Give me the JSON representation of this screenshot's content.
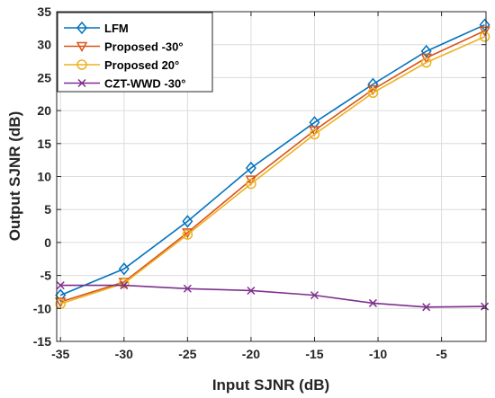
{
  "chart_data": {
    "type": "line",
    "xlabel": "Input SJNR (dB)",
    "ylabel": "Output SJNR (dB)",
    "xlim": [
      -35.3,
      -1.5
    ],
    "ylim": [
      -15,
      35
    ],
    "xticks": [
      -35,
      -30,
      -25,
      -20,
      -15,
      -10,
      -5
    ],
    "yticks": [
      -15,
      -10,
      -5,
      0,
      5,
      10,
      15,
      20,
      25,
      30,
      35
    ],
    "grid": true,
    "legend_position": "top-left",
    "series": [
      {
        "name": "LFM",
        "color": "#0072BD",
        "marker": "diamond",
        "x": [
          -35,
          -30,
          -25,
          -20,
          -15,
          -10.4,
          -6.2,
          -1.6
        ],
        "y": [
          -8.0,
          -4.0,
          3.2,
          11.3,
          18.2,
          24.0,
          29.0,
          33.0
        ]
      },
      {
        "name": "Proposed -30°",
        "color": "#D95319",
        "marker": "triangle-down",
        "x": [
          -35,
          -30,
          -25,
          -20,
          -15,
          -10.4,
          -6.2,
          -1.6
        ],
        "y": [
          -9.0,
          -6.0,
          1.5,
          9.5,
          17.0,
          23.2,
          28.0,
          32.1
        ]
      },
      {
        "name": "Proposed 20°",
        "color": "#EDB120",
        "marker": "circle",
        "x": [
          -35,
          -30,
          -25,
          -20,
          -15,
          -10.4,
          -6.2,
          -1.6
        ],
        "y": [
          -9.3,
          -6.2,
          1.2,
          8.9,
          16.4,
          22.7,
          27.3,
          31.2
        ]
      },
      {
        "name": "CZT-WWD -30°",
        "color": "#7E2F8E",
        "marker": "x",
        "x": [
          -35,
          -30,
          -25,
          -20,
          -15,
          -10.4,
          -6.2,
          -1.6
        ],
        "y": [
          -6.5,
          -6.5,
          -7.0,
          -7.3,
          -8.0,
          -9.2,
          -9.8,
          -9.7
        ]
      }
    ]
  }
}
